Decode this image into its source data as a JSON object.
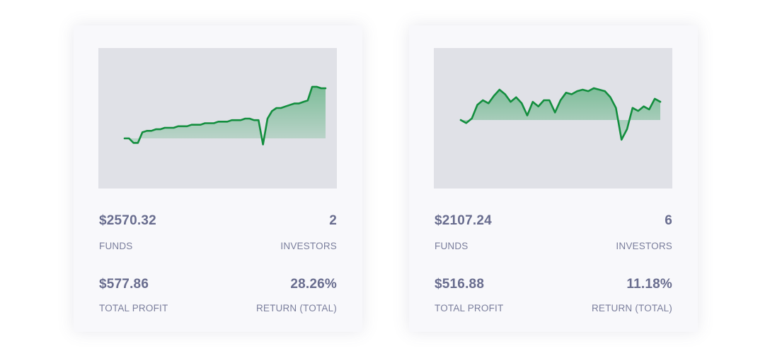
{
  "cards": [
    {
      "funds_value": "$2570.32",
      "funds_label": "FUNDS",
      "investors_value": "2",
      "investors_label": "INVESTORS",
      "profit_value": "$577.86",
      "profit_label": "TOTAL PROFIT",
      "return_value": "28.26%",
      "return_label": "RETURN (TOTAL)"
    },
    {
      "funds_value": "$2107.24",
      "funds_label": "FUNDS",
      "investors_value": "6",
      "investors_label": "INVESTORS",
      "profit_value": "$516.88",
      "profit_label": "TOTAL PROFIT",
      "return_value": "11.18%",
      "return_label": "RETURN (TOTAL)"
    }
  ],
  "colors": {
    "line": "#138e3e",
    "fill": "#2ea05a",
    "chart_bg": "#e0e1e7",
    "card_bg": "#f8f8fb",
    "text": "#686c8e"
  },
  "chart_data": [
    {
      "type": "area",
      "baseline": 0,
      "series": [
        {
          "values": [
            0,
            0,
            -3,
            -3,
            4,
            5,
            5,
            6,
            6,
            7,
            7,
            7,
            8,
            8,
            8,
            9,
            9,
            9,
            10,
            10,
            10,
            11,
            11,
            11,
            12,
            12,
            12,
            13,
            13,
            12,
            12,
            -4,
            13,
            18,
            20,
            20,
            21,
            22,
            23,
            23,
            24,
            25,
            34,
            34,
            33,
            33
          ]
        }
      ]
    },
    {
      "type": "area",
      "baseline": 0,
      "series": [
        {
          "values": [
            0,
            -2,
            1,
            10,
            13,
            11,
            16,
            20,
            17,
            12,
            15,
            11,
            3,
            12,
            9,
            13,
            13,
            5,
            13,
            18,
            17,
            19,
            20,
            19,
            21,
            20,
            19,
            15,
            8,
            -13,
            -6,
            8,
            6,
            9,
            7,
            14,
            12
          ]
        }
      ]
    }
  ]
}
